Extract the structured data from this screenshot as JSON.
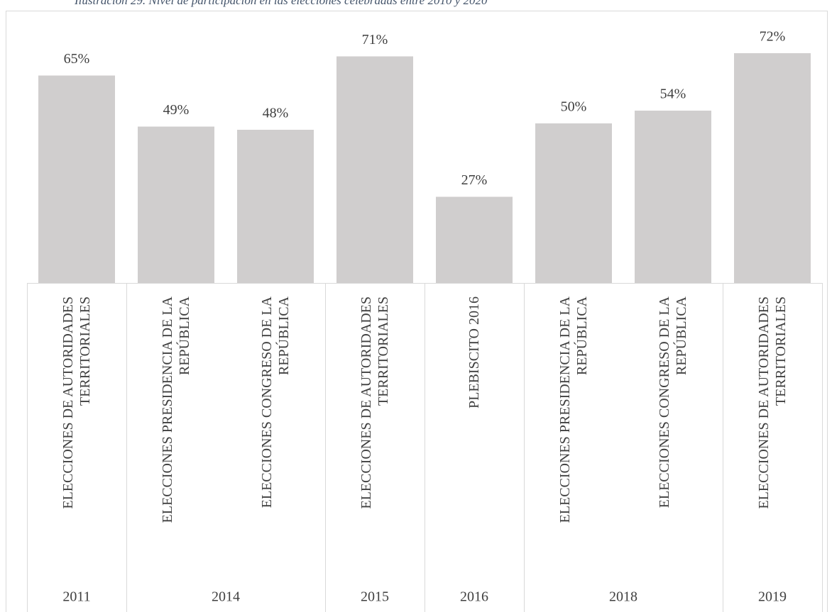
{
  "chart_data": {
    "type": "bar",
    "title": "Ilustración 29. Nivel de participación en las elecciones celebradas entre 2010 y 2020",
    "categories": [
      "ELECCIONES DE AUTORIDADES TERRITORIALES",
      "ELECCIONES PRESIDENCIA DE LA REPÚBLICA",
      "ELECCIONES CONGRESO DE LA REPÚBLICA",
      "ELECCIONES DE AUTORIDADES TERRITORIALES",
      "PLEBISCITO 2016",
      "ELECCIONES PRESIDENCIA DE LA REPÚBLICA",
      "ELECCIONES CONGRESO DE LA REPÚBLICA",
      "ELECCIONES DE AUTORIDADES TERRITORIALES"
    ],
    "groups": [
      {
        "label": "2011",
        "span": 1
      },
      {
        "label": "2014",
        "span": 2
      },
      {
        "label": "2015",
        "span": 1
      },
      {
        "label": "2016",
        "span": 1
      },
      {
        "label": "2018",
        "span": 2
      },
      {
        "label": "2019",
        "span": 1
      }
    ],
    "values": [
      65,
      49,
      48,
      71,
      27,
      50,
      54,
      72
    ],
    "value_labels": [
      "65%",
      "49%",
      "48%",
      "71%",
      "27%",
      "50%",
      "54%",
      "72%"
    ],
    "color": "#d0cece",
    "ylim": [
      0,
      80
    ]
  }
}
